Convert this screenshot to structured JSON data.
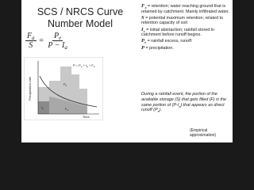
{
  "title": {
    "line1": "SCS / NRCS Curve",
    "line2": "Number Model"
  },
  "formula": {
    "lhs_num": {
      "symbol": "F",
      "sub": "a"
    },
    "lhs_den": "S",
    "equals": "=",
    "rhs_num": {
      "symbol": "P",
      "sub": "e"
    },
    "rhs_den": {
      "symbol": "P − I",
      "sub": "a"
    }
  },
  "definitions": [
    {
      "symbol": "F",
      "sub": "a",
      "text": " = retention; water reaching ground that is retained by catchment. Mainly infiltrated water."
    },
    {
      "symbol": "S",
      "sub": "",
      "text": " = potential maximum retention; related to retention capacity of soil"
    },
    {
      "symbol": "I",
      "sub": "a",
      "text": " = initial abstraction; rainfall stored in catchment before runoff begins."
    },
    {
      "symbol": "P",
      "sub": "e",
      "text": " = rainfall excess, runoff."
    },
    {
      "symbol": "P",
      "sub": "",
      "text": " = precipitation."
    }
  ],
  "explanation": {
    "part1": "During a rainfall event, the portion of the available storage (S) that gets filled (F) is the same portion of (P-I",
    "sub1": "a",
    "part2": ") that appears as direct runoff (P",
    "sub2": "e",
    "part3": ")."
  },
  "note": "(Empirical approximation)",
  "diagram": {
    "y_label": "Precipitation rate",
    "x_label": "Time",
    "equation": {
      "p1": "P = P",
      "s1": "e",
      "p2": " + I",
      "s2": "a",
      "p3": " + F",
      "s3": "a"
    },
    "regions": [
      {
        "symbol": "P",
        "sub": "e"
      },
      {
        "symbol": "I",
        "sub": "a"
      },
      {
        "symbol": "F",
        "sub": "a"
      }
    ]
  }
}
